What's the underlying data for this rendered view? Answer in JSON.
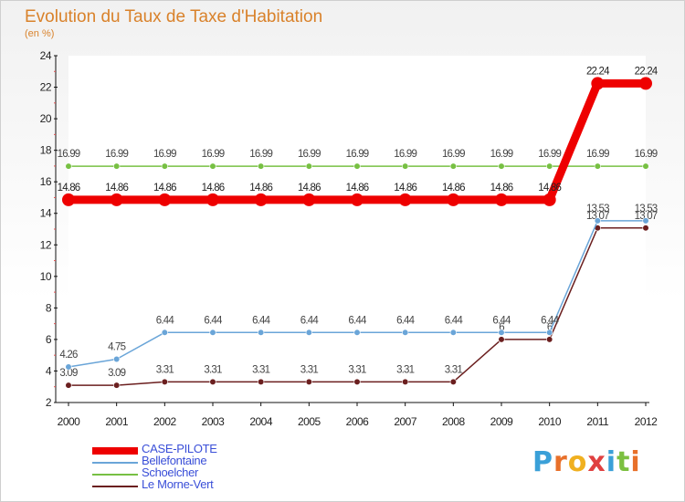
{
  "title": "Evolution du Taux de Taxe d'Habitation",
  "subtitle": "(en %)",
  "brand": {
    "text": "Proxiti",
    "colors": [
      "#3aa0d8",
      "#e8702a",
      "#f0b020",
      "#e04040",
      "#3aa0d8",
      "#7cc040",
      "#e8702a"
    ]
  },
  "chart_data": {
    "type": "line",
    "title": "Evolution du Taux de Taxe d'Habitation",
    "ylabel": "(en %)",
    "xlabel": "",
    "categories": [
      "2000",
      "2001",
      "2002",
      "2003",
      "2004",
      "2005",
      "2006",
      "2007",
      "2008",
      "2009",
      "2010",
      "2011",
      "2012"
    ],
    "ylim": [
      2,
      24
    ],
    "yticks": [
      2,
      4,
      6,
      8,
      10,
      12,
      14,
      16,
      18,
      20,
      22,
      24
    ],
    "grid": false,
    "legend_position": "bottom-left",
    "series": [
      {
        "name": "Schoelcher",
        "color": "#77c043",
        "values": [
          16.99,
          16.99,
          16.99,
          16.99,
          16.99,
          16.99,
          16.99,
          16.99,
          16.99,
          16.99,
          16.99,
          16.99,
          16.99
        ],
        "labels": [
          "16.99",
          "16.99",
          "16.99",
          "16.99",
          "16.99",
          "16.99",
          "16.99",
          "16.99",
          "16.99",
          "16.99",
          "16.99",
          "16.99",
          "16.99"
        ]
      },
      {
        "name": "Le Morne-Vert",
        "color": "#6b1f1f",
        "values": [
          3.09,
          3.09,
          3.31,
          3.31,
          3.31,
          3.31,
          3.31,
          3.31,
          3.31,
          6,
          6,
          13.07,
          13.07
        ],
        "labels": [
          "3.09",
          "3.09",
          "3.31",
          "3.31",
          "3.31",
          "3.31",
          "3.31",
          "3.31",
          "3.31",
          "6",
          "6",
          "13.07",
          "13.07"
        ]
      },
      {
        "name": "Bellefontaine",
        "color": "#6aa5d8",
        "values": [
          4.26,
          4.75,
          6.44,
          6.44,
          6.44,
          6.44,
          6.44,
          6.44,
          6.44,
          6.44,
          6.44,
          13.53,
          13.53
        ],
        "labels": [
          "4.26",
          "4.75",
          "6.44",
          "6.44",
          "6.44",
          "6.44",
          "6.44",
          "6.44",
          "6.44",
          "6.44",
          "6.44",
          "13.53",
          "13.53"
        ]
      },
      {
        "name": "CASE-PILOTE",
        "color": "#ee0000",
        "values": [
          14.86,
          14.86,
          14.86,
          14.86,
          14.86,
          14.86,
          14.86,
          14.86,
          14.86,
          14.86,
          14.86,
          22.24,
          22.24
        ],
        "labels": [
          "14.86",
          "14.86",
          "14.86",
          "14.86",
          "14.86",
          "14.86",
          "14.86",
          "14.86",
          "14.86",
          "14.86",
          "14.86",
          "22.24",
          "22.24"
        ]
      }
    ],
    "legend_order": [
      "CASE-PILOTE",
      "Bellefontaine",
      "Schoelcher",
      "Le Morne-Vert"
    ]
  }
}
